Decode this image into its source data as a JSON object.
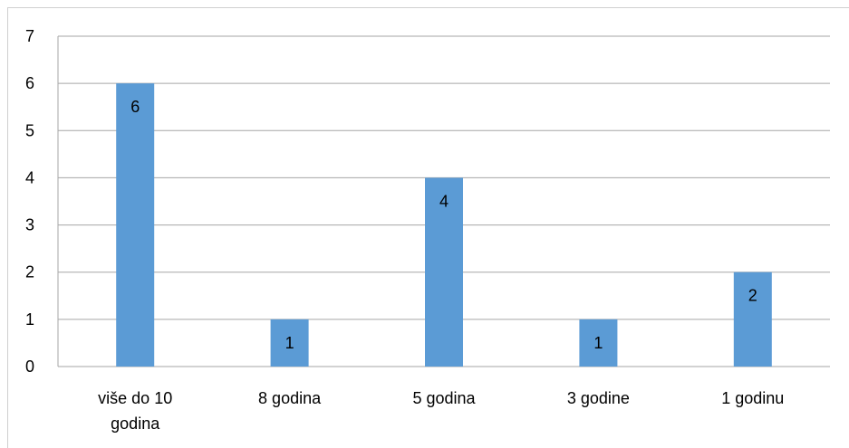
{
  "chart_data": {
    "type": "bar",
    "categories": [
      [
        "više do 10",
        "godina"
      ],
      [
        "8 godina"
      ],
      [
        "5 godina"
      ],
      [
        "3 godine"
      ],
      [
        "1 godinu"
      ]
    ],
    "values": [
      6,
      1,
      4,
      1,
      2
    ],
    "data_labels": [
      "6",
      "1",
      "4",
      "1",
      "2"
    ],
    "title": "",
    "xlabel": "",
    "ylabel": "",
    "ylim": [
      0,
      7
    ],
    "yticks": [
      "0",
      "1",
      "2",
      "3",
      "4",
      "5",
      "6",
      "7"
    ],
    "grid": true,
    "legend": "none",
    "colors": {
      "bar": "#5b9bd5",
      "grid": "#a6a6a6",
      "text": "#000000",
      "frame": "#d0d0d0"
    }
  }
}
